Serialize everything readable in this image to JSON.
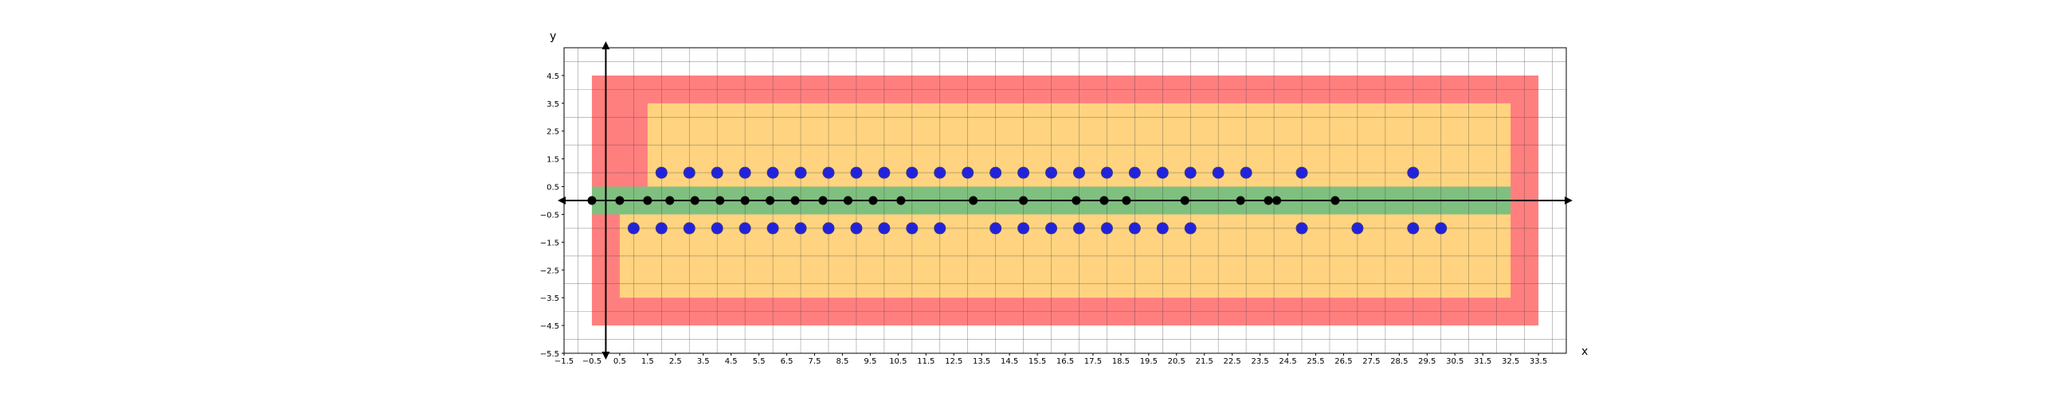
{
  "chart_data": {
    "type": "scatter",
    "title": "",
    "xlabel": "x",
    "ylabel": "y",
    "xlim": [
      -1.5,
      34.5
    ],
    "ylim": [
      -5.5,
      5.5
    ],
    "xticks": [
      -1.5,
      -0.5,
      0.5,
      1.5,
      2.5,
      3.5,
      4.5,
      5.5,
      6.5,
      7.5,
      8.5,
      9.5,
      10.5,
      11.5,
      12.5,
      13.5,
      14.5,
      15.5,
      16.5,
      17.5,
      18.5,
      19.5,
      20.5,
      21.5,
      22.5,
      23.5,
      24.5,
      25.5,
      26.5,
      27.5,
      28.5,
      29.5,
      30.5,
      31.5,
      32.5,
      33.5
    ],
    "xtick_labels": [
      "−1.5",
      "−0.5",
      "0.5",
      "1.5",
      "2.5",
      "3.5",
      "4.5",
      "5.5",
      "6.5",
      "7.5",
      "8.5",
      "9.5",
      "10.5",
      "11.5",
      "12.5",
      "13.5",
      "14.5",
      "15.5",
      "16.5",
      "17.5",
      "18.5",
      "19.5",
      "20.5",
      "21.5",
      "22.5",
      "23.5",
      "24.5",
      "25.5",
      "26.5",
      "27.5",
      "28.5",
      "29.5",
      "30.5",
      "31.5",
      "32.5",
      "33.5"
    ],
    "yticks": [
      4.5,
      3.5,
      2.5,
      1.5,
      0.5,
      -0.5,
      -1.5,
      -2.5,
      -3.5,
      -4.5,
      -5.5
    ],
    "ytick_labels": [
      "4.5",
      "3.5",
      "2.5",
      "1.5",
      "0.5",
      "−0.5",
      "−1.5",
      "−2.5",
      "−3.5",
      "−4.5",
      "−5.5"
    ],
    "grid": true,
    "regions": [
      {
        "color": "#ff7f7f",
        "x": [
          -0.5,
          33.5
        ],
        "y": [
          -4.5,
          4.5
        ]
      },
      {
        "color": "#ffd37f",
        "x": [
          0.5,
          32.5
        ],
        "y": [
          -3.5,
          0
        ]
      },
      {
        "color": "#ffd37f",
        "x": [
          1.5,
          32.5
        ],
        "y": [
          0,
          3.5
        ]
      },
      {
        "color": "#7fbf7f",
        "x": [
          -0.5,
          32.5
        ],
        "y": [
          -0.5,
          0.5
        ]
      }
    ],
    "series": [
      {
        "color": "#000000",
        "points": [
          [
            -0.5,
            0
          ],
          [
            0.5,
            0
          ],
          [
            1.5,
            0
          ],
          [
            2.3,
            0
          ],
          [
            3.2,
            0
          ],
          [
            4.1,
            0
          ],
          [
            5.0,
            0
          ],
          [
            5.9,
            0
          ],
          [
            6.8,
            0
          ],
          [
            7.8,
            0
          ],
          [
            8.7,
            0
          ],
          [
            9.6,
            0
          ],
          [
            10.6,
            0
          ],
          [
            13.2,
            0
          ],
          [
            15.0,
            0
          ],
          [
            16.9,
            0
          ],
          [
            17.9,
            0
          ],
          [
            18.7,
            0
          ],
          [
            20.8,
            0
          ],
          [
            22.8,
            0
          ],
          [
            23.8,
            0
          ],
          [
            24.1,
            0
          ],
          [
            26.2,
            0
          ]
        ]
      },
      {
        "color": "#2222dd",
        "points": [
          [
            2.0,
            1
          ],
          [
            3.0,
            1
          ],
          [
            4.0,
            1
          ],
          [
            5.0,
            1
          ],
          [
            6.0,
            1
          ],
          [
            7.0,
            1
          ],
          [
            8.0,
            1
          ],
          [
            9.0,
            1
          ],
          [
            10.0,
            1
          ],
          [
            11.0,
            1
          ],
          [
            12.0,
            1
          ],
          [
            13.0,
            1
          ],
          [
            14.0,
            1
          ],
          [
            15.0,
            1
          ],
          [
            16.0,
            1
          ],
          [
            17.0,
            1
          ],
          [
            18.0,
            1
          ],
          [
            19.0,
            1
          ],
          [
            20.0,
            1
          ],
          [
            21.0,
            1
          ],
          [
            22.0,
            1
          ],
          [
            23.0,
            1
          ],
          [
            25.0,
            1
          ],
          [
            29.0,
            1
          ],
          [
            1.0,
            -1
          ],
          [
            2.0,
            -1
          ],
          [
            3.0,
            -1
          ],
          [
            4.0,
            -1
          ],
          [
            5.0,
            -1
          ],
          [
            6.0,
            -1
          ],
          [
            7.0,
            -1
          ],
          [
            8.0,
            -1
          ],
          [
            9.0,
            -1
          ],
          [
            10.0,
            -1
          ],
          [
            11.0,
            -1
          ],
          [
            12.0,
            -1
          ],
          [
            14.0,
            -1
          ],
          [
            15.0,
            -1
          ],
          [
            16.0,
            -1
          ],
          [
            17.0,
            -1
          ],
          [
            18.0,
            -1
          ],
          [
            19.0,
            -1
          ],
          [
            20.0,
            -1
          ],
          [
            21.0,
            -1
          ],
          [
            25.0,
            -1
          ],
          [
            27.0,
            -1
          ],
          [
            29.0,
            -1
          ],
          [
            30.0,
            -1
          ]
        ]
      }
    ]
  }
}
